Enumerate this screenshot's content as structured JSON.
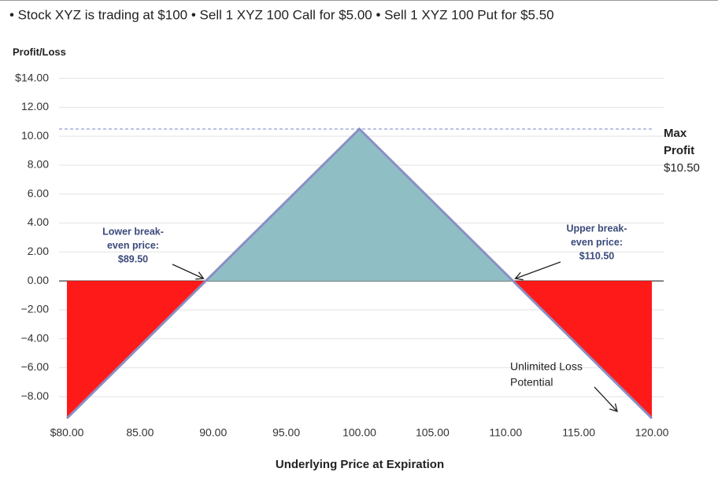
{
  "chart_data": {
    "type": "line",
    "subtitle": "• Stock XYZ is trading at $100 • Sell 1 XYZ 100 Call for $5.00 • Sell 1 XYZ 100 Put for $5.50",
    "ylabel": "Profit/Loss",
    "xlabel": "Underlying Price at Expiration",
    "series": [
      {
        "x": [
          80,
          89.5,
          100,
          110.5,
          120
        ],
        "values": [
          -9.5,
          0,
          10.5,
          0,
          -9.5
        ],
        "color": "#8a8fc4"
      }
    ],
    "profit_color": "#8fbfc4",
    "loss_color": "#ff1a1a",
    "xlim": [
      80,
      120
    ],
    "ylim": [
      -9.5,
      14
    ],
    "xticks": [
      {
        "value": 80,
        "label": "$80.00"
      },
      {
        "value": 85,
        "label": "85.00"
      },
      {
        "value": 90,
        "label": "90.00"
      },
      {
        "value": 95,
        "label": "95.00"
      },
      {
        "value": 100,
        "label": "100.00"
      },
      {
        "value": 105,
        "label": "105.00"
      },
      {
        "value": 110,
        "label": "110.00"
      },
      {
        "value": 115,
        "label": "115.00"
      },
      {
        "value": 120,
        "label": "120.00"
      }
    ],
    "yticks": [
      {
        "value": -8,
        "label": "−8.00"
      },
      {
        "value": -6,
        "label": "−6.00"
      },
      {
        "value": -4,
        "label": "−4.00"
      },
      {
        "value": -2,
        "label": "−2.00"
      },
      {
        "value": 0,
        "label": "0.00"
      },
      {
        "value": 2,
        "label": "2.00"
      },
      {
        "value": 4,
        "label": "4.00"
      },
      {
        "value": 6,
        "label": "6.00"
      },
      {
        "value": 8,
        "label": "8.00"
      },
      {
        "value": 10,
        "label": "10.00"
      },
      {
        "value": 12,
        "label": "12.00"
      },
      {
        "value": 14,
        "label": "$14.00"
      }
    ],
    "grid": true,
    "max_profit": {
      "lines": [
        "Max",
        "Profit"
      ],
      "value": 10.5,
      "value_label": "$10.50"
    },
    "break_evens": [
      {
        "x": 89.5,
        "lines": [
          "Lower break-",
          "even price:",
          "$89.50"
        ]
      },
      {
        "x": 110.5,
        "lines": [
          "Upper break-",
          "even price:",
          "$110.50"
        ]
      }
    ],
    "loss_note": {
      "lines": [
        "Unlimited Loss",
        "Potential"
      ]
    }
  }
}
